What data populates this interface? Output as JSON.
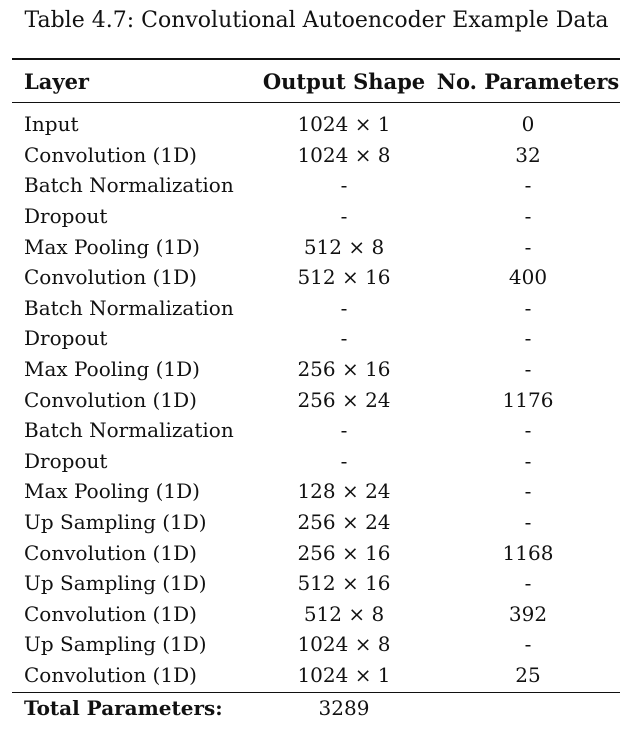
{
  "caption": "Table 4.7: Convolutional Autoencoder Example Data",
  "table": {
    "headers": [
      "Layer",
      "Output Shape",
      "No. Parameters"
    ],
    "rows": [
      [
        "Input",
        "1024 × 1",
        "0"
      ],
      [
        "Convolution (1D)",
        "1024 × 8",
        "32"
      ],
      [
        "Batch Normalization",
        "-",
        "-"
      ],
      [
        "Dropout",
        "-",
        "-"
      ],
      [
        "Max Pooling (1D)",
        "512 × 8",
        "-"
      ],
      [
        "Convolution (1D)",
        "512 × 16",
        "400"
      ],
      [
        "Batch Normalization",
        "-",
        "-"
      ],
      [
        "Dropout",
        "-",
        "-"
      ],
      [
        "Max Pooling (1D)",
        "256 × 16",
        "-"
      ],
      [
        "Convolution (1D)",
        "256 × 24",
        "1176"
      ],
      [
        "Batch Normalization",
        "-",
        "-"
      ],
      [
        "Dropout",
        "-",
        "-"
      ],
      [
        "Max Pooling (1D)",
        "128 × 24",
        "-"
      ],
      [
        "Up Sampling (1D)",
        "256 × 24",
        "-"
      ],
      [
        "Convolution (1D)",
        "256 × 16",
        "1168"
      ],
      [
        "Up Sampling (1D)",
        "512 × 16",
        "-"
      ],
      [
        "Convolution (1D)",
        "512 × 8",
        "392"
      ],
      [
        "Up Sampling (1D)",
        "1024 × 8",
        "-"
      ],
      [
        "Convolution (1D)",
        "1024 × 1",
        "25"
      ]
    ],
    "total_label": "Total Parameters:",
    "total_value": "3289"
  }
}
